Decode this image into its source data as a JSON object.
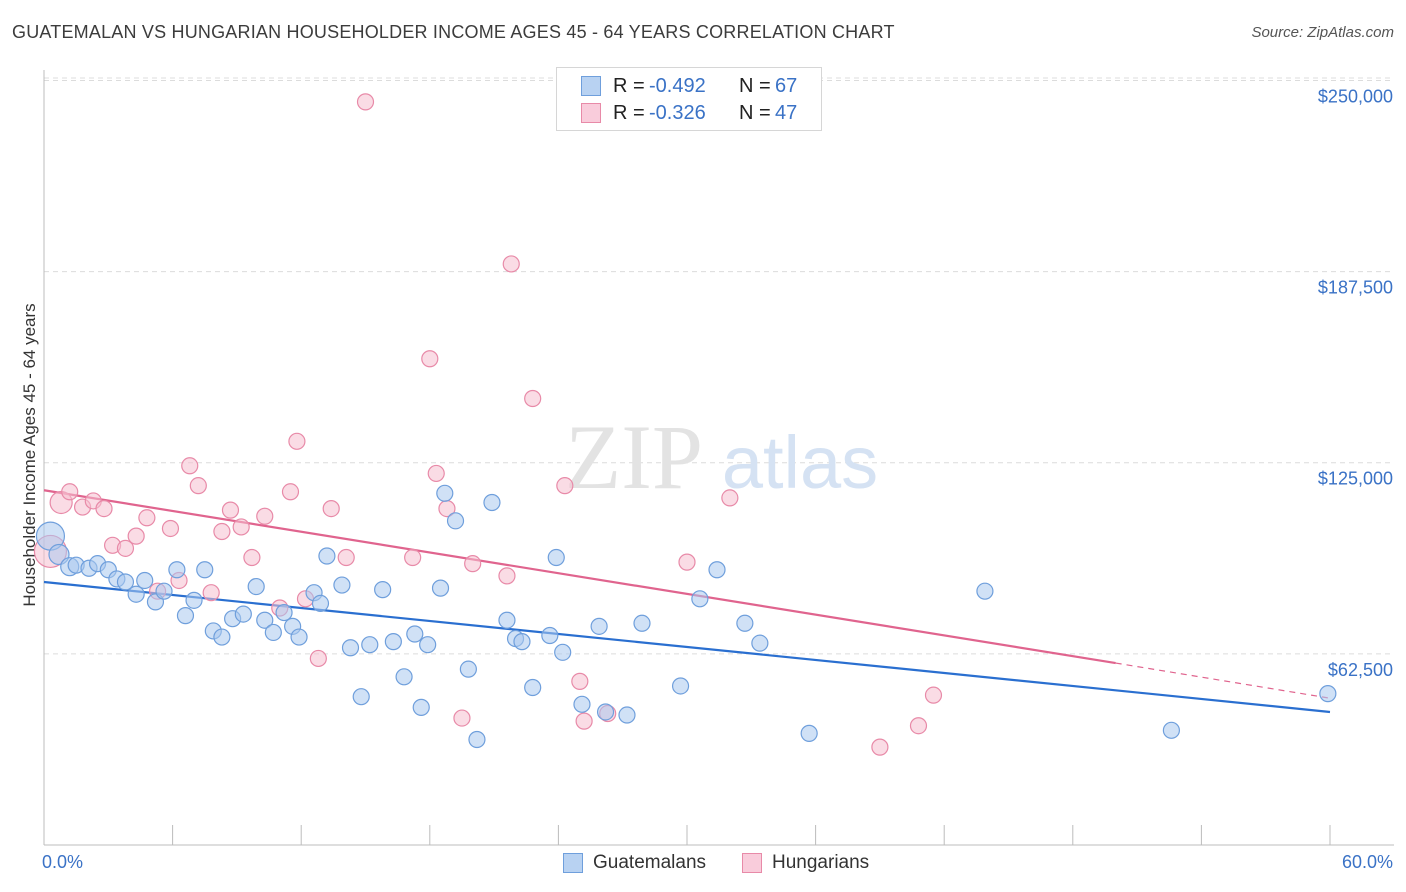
{
  "header": {
    "title": "GUATEMALAN VS HUNGARIAN HOUSEHOLDER INCOME AGES 45 - 64 YEARS CORRELATION CHART",
    "source": "Source: ZipAtlas.com"
  },
  "watermark": {
    "zip": "ZIP",
    "atlas": "atlas"
  },
  "legend_top": {
    "rows": [
      {
        "r_label": "R =",
        "r_value": "-0.492",
        "n_label": "N =",
        "n_value": "67"
      },
      {
        "r_label": "R =",
        "r_value": "-0.326",
        "n_label": "N =",
        "n_value": "47"
      }
    ]
  },
  "legend_bottom": {
    "series1": "Guatemalans",
    "series2": "Hungarians"
  },
  "colors": {
    "guatemalan_fill": "#a9c8ef",
    "guatemalan_stroke": "#6f9fdc",
    "guatemalan_line": "#2a6fd0",
    "hungarian_fill": "#f6bfd0",
    "hungarian_stroke": "#e88aa8",
    "hungarian_line": "#e0648e",
    "tick_label": "#3a72c6",
    "grid": "#dcdcdc"
  },
  "chart_data": {
    "type": "scatter",
    "title": "GUATEMALAN VS HUNGARIAN HOUSEHOLDER INCOME AGES 45 - 64 YEARS CORRELATION CHART",
    "xlabel": "",
    "ylabel": "Householder Income Ages 45 - 64 years",
    "xlim": [
      0,
      60
    ],
    "ylim": [
      0,
      262500
    ],
    "x_tick_labels": [
      "0.0%",
      "60.0%"
    ],
    "y_ticks": [
      62500,
      125000,
      187500,
      250000
    ],
    "y_tick_labels": [
      "$62,500",
      "$125,000",
      "$187,500",
      "$250,000"
    ],
    "grid": true,
    "series": [
      {
        "name": "Guatemalans",
        "r": -0.492,
        "n": 67,
        "trend": {
          "x": [
            0,
            60
          ],
          "y": [
            86000,
            43500
          ]
        },
        "points": [
          [
            0.3,
            101000,
            14
          ],
          [
            0.7,
            95000,
            10
          ],
          [
            1.2,
            91000,
            9
          ],
          [
            1.5,
            91500,
            8
          ],
          [
            2.1,
            90500,
            8
          ],
          [
            2.5,
            92000,
            8
          ],
          [
            3.0,
            90000,
            8
          ],
          [
            3.4,
            87000,
            8
          ],
          [
            3.8,
            86000,
            8
          ],
          [
            4.3,
            82000,
            8
          ],
          [
            4.7,
            86500,
            8
          ],
          [
            5.2,
            79500,
            8
          ],
          [
            5.6,
            83000,
            8
          ],
          [
            6.2,
            90000,
            8
          ],
          [
            6.6,
            75000,
            8
          ],
          [
            7.0,
            80000,
            8
          ],
          [
            7.5,
            90000,
            8
          ],
          [
            7.9,
            70000,
            8
          ],
          [
            8.3,
            68000,
            8
          ],
          [
            8.8,
            74000,
            8
          ],
          [
            9.3,
            75500,
            8
          ],
          [
            9.9,
            84500,
            8
          ],
          [
            10.3,
            73500,
            8
          ],
          [
            10.7,
            69500,
            8
          ],
          [
            11.2,
            76000,
            8
          ],
          [
            11.6,
            71500,
            8
          ],
          [
            11.9,
            68000,
            8
          ],
          [
            12.6,
            82500,
            8
          ],
          [
            12.9,
            79000,
            8
          ],
          [
            13.2,
            94500,
            8
          ],
          [
            13.9,
            85000,
            8
          ],
          [
            14.3,
            64500,
            8
          ],
          [
            14.8,
            48500,
            8
          ],
          [
            15.2,
            65500,
            8
          ],
          [
            15.8,
            83500,
            8
          ],
          [
            16.3,
            66500,
            8
          ],
          [
            16.8,
            55000,
            8
          ],
          [
            17.3,
            69000,
            8
          ],
          [
            17.6,
            45000,
            8
          ],
          [
            17.9,
            65500,
            8
          ],
          [
            18.5,
            84000,
            8
          ],
          [
            18.7,
            115000,
            8
          ],
          [
            19.2,
            106000,
            8
          ],
          [
            19.8,
            57500,
            8
          ],
          [
            20.2,
            34500,
            8
          ],
          [
            20.9,
            112000,
            8
          ],
          [
            21.6,
            73500,
            8
          ],
          [
            22.0,
            67500,
            8
          ],
          [
            22.3,
            66500,
            8
          ],
          [
            22.8,
            51500,
            8
          ],
          [
            23.6,
            68500,
            8
          ],
          [
            23.9,
            94000,
            8
          ],
          [
            24.2,
            63000,
            8
          ],
          [
            25.1,
            46000,
            8
          ],
          [
            25.9,
            71500,
            8
          ],
          [
            26.2,
            43500,
            8
          ],
          [
            27.2,
            42500,
            8
          ],
          [
            27.9,
            72500,
            8
          ],
          [
            29.7,
            52000,
            8
          ],
          [
            30.6,
            80500,
            8
          ],
          [
            31.4,
            90000,
            8
          ],
          [
            32.7,
            72500,
            8
          ],
          [
            33.4,
            66000,
            8
          ],
          [
            35.7,
            36500,
            8
          ],
          [
            43.9,
            83000,
            8
          ],
          [
            52.6,
            37500,
            8
          ],
          [
            59.9,
            49500,
            8
          ]
        ]
      },
      {
        "name": "Hungarians",
        "r": -0.326,
        "n": 47,
        "trend": {
          "x": [
            0,
            50
          ],
          "y": [
            116000,
            59500
          ]
        },
        "trend_dashed": {
          "x": [
            50,
            60
          ],
          "y": [
            59500,
            48000
          ]
        },
        "points": [
          [
            0.3,
            96000,
            16
          ],
          [
            0.8,
            112000,
            11
          ],
          [
            1.2,
            115500,
            8
          ],
          [
            1.8,
            110500,
            8
          ],
          [
            2.3,
            112500,
            8
          ],
          [
            2.8,
            110000,
            8
          ],
          [
            3.2,
            98000,
            8
          ],
          [
            3.8,
            97000,
            8
          ],
          [
            4.3,
            101000,
            8
          ],
          [
            4.8,
            107000,
            8
          ],
          [
            5.3,
            83000,
            8
          ],
          [
            5.9,
            103500,
            8
          ],
          [
            6.3,
            86500,
            8
          ],
          [
            6.8,
            124000,
            8
          ],
          [
            7.2,
            117500,
            8
          ],
          [
            7.8,
            82500,
            8
          ],
          [
            8.3,
            102500,
            8
          ],
          [
            8.7,
            109500,
            8
          ],
          [
            9.2,
            104000,
            8
          ],
          [
            9.7,
            94000,
            8
          ],
          [
            10.3,
            107500,
            8
          ],
          [
            11.0,
            77500,
            8
          ],
          [
            11.5,
            115500,
            8
          ],
          [
            11.8,
            132000,
            8
          ],
          [
            12.2,
            80500,
            8
          ],
          [
            12.8,
            61000,
            8
          ],
          [
            13.4,
            110000,
            8
          ],
          [
            14.1,
            94000,
            8
          ],
          [
            15.0,
            243000,
            8
          ],
          [
            17.2,
            94000,
            8
          ],
          [
            18.0,
            159000,
            8
          ],
          [
            18.3,
            121500,
            8
          ],
          [
            18.8,
            110000,
            8
          ],
          [
            19.5,
            41500,
            8
          ],
          [
            20.0,
            92000,
            8
          ],
          [
            21.6,
            88000,
            8
          ],
          [
            21.8,
            190000,
            8
          ],
          [
            22.8,
            146000,
            8
          ],
          [
            24.3,
            117500,
            8
          ],
          [
            25.0,
            53500,
            8
          ],
          [
            25.2,
            40500,
            8
          ],
          [
            26.3,
            43000,
            8
          ],
          [
            30.0,
            92500,
            8
          ],
          [
            32.0,
            113500,
            8
          ],
          [
            39.0,
            32000,
            8
          ],
          [
            40.8,
            39000,
            8
          ],
          [
            41.5,
            49000,
            8
          ]
        ]
      }
    ]
  }
}
